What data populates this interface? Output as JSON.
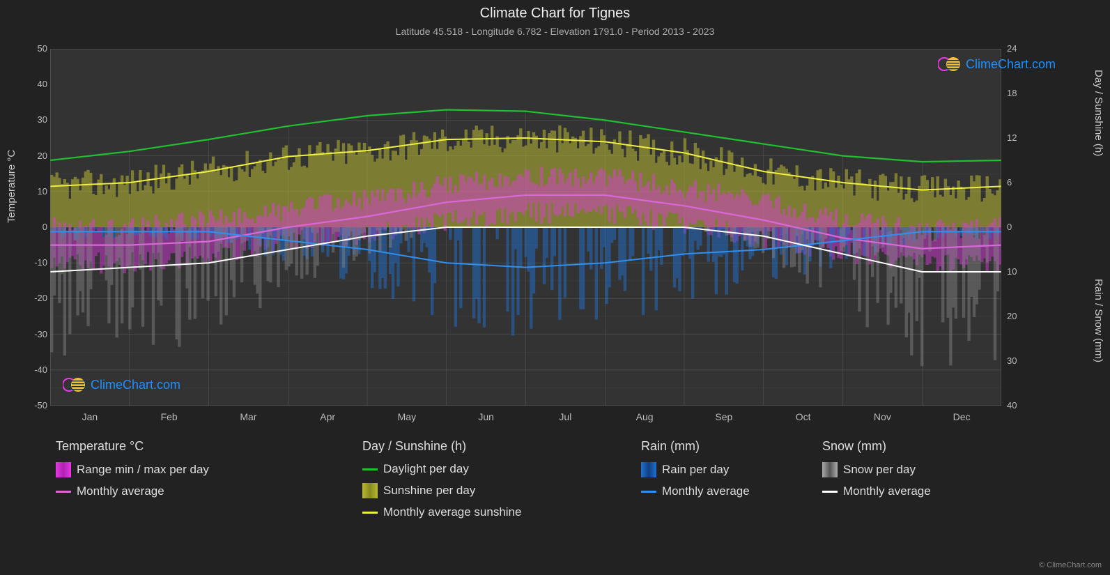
{
  "title": "Climate Chart for Tignes",
  "subtitle": "Latitude 45.518 - Longitude 6.782 - Elevation 1791.0 - Period 2013 - 2023",
  "brand": "ClimeChart.com",
  "copyright": "© ClimeChart.com",
  "axis_labels": {
    "left": "Temperature °C",
    "right_top": "Day / Sunshine (h)",
    "right_bottom": "Rain / Snow (mm)"
  },
  "colors": {
    "bg": "#222222",
    "plot_bg": "#333333",
    "grid": "#555555",
    "grid_minor": "#444444",
    "text": "#cccccc",
    "temp_range": "#e838e8",
    "temp_avg": "#d868d8",
    "daylight": "#20c030",
    "sunshine_bar": "#b8b832",
    "sunshine_avg": "#f0f040",
    "rain_bar": "#2070d0",
    "rain_avg": "#3090f0",
    "snow_bar": "#888888",
    "snow_avg": "#ffffff"
  },
  "y_axis_left": {
    "min": -50,
    "max": 50,
    "step": 10,
    "ticks": [
      50,
      40,
      30,
      20,
      10,
      0,
      -10,
      -20,
      -30,
      -40,
      -50
    ]
  },
  "y_axis_right_top": {
    "min": 0,
    "max": 24,
    "step": 6,
    "ticks": [
      24,
      18,
      12,
      6,
      0
    ]
  },
  "y_axis_right_bottom": {
    "min": 0,
    "max": 40,
    "step": 10,
    "ticks": [
      0,
      10,
      20,
      30,
      40
    ]
  },
  "months": [
    "Jan",
    "Feb",
    "Mar",
    "Apr",
    "May",
    "Jun",
    "Jul",
    "Aug",
    "Sep",
    "Oct",
    "Nov",
    "Dec"
  ],
  "daylight": [
    9.0,
    10.2,
    11.8,
    13.6,
    15.0,
    15.8,
    15.6,
    14.4,
    12.8,
    11.2,
    9.6,
    8.8
  ],
  "sunshine_avg": [
    5.5,
    6.0,
    7.5,
    9.5,
    10.3,
    11.8,
    12.0,
    11.5,
    10.0,
    7.5,
    6,
    5.0
  ],
  "temp_max": [
    0,
    0,
    2,
    5,
    8,
    12,
    14,
    14,
    11,
    7,
    2,
    -1
  ],
  "temp_min": [
    -10,
    -10,
    -8,
    -4,
    -2,
    2,
    4,
    4,
    1,
    -3,
    -7,
    -10
  ],
  "temp_avg": [
    -5,
    -5,
    -4,
    0,
    3,
    7,
    9,
    9,
    6,
    2,
    -3,
    -6
  ],
  "rain_avg": [
    1,
    1,
    1,
    3,
    5,
    8,
    9,
    8,
    6,
    5,
    3,
    1
  ],
  "snow_avg": [
    10,
    9,
    8,
    5,
    2,
    0,
    0,
    0,
    0,
    2,
    6,
    10
  ],
  "legend": {
    "temp_header": "Temperature °C",
    "temp_range": "Range min / max per day",
    "temp_avg": "Monthly average",
    "day_header": "Day / Sunshine (h)",
    "daylight": "Daylight per day",
    "sunshine_day": "Sunshine per day",
    "sunshine_avg": "Monthly average sunshine",
    "rain_header": "Rain (mm)",
    "rain_day": "Rain per day",
    "rain_avg": "Monthly average",
    "snow_header": "Snow (mm)",
    "snow_day": "Snow per day",
    "snow_avg": "Monthly average"
  }
}
